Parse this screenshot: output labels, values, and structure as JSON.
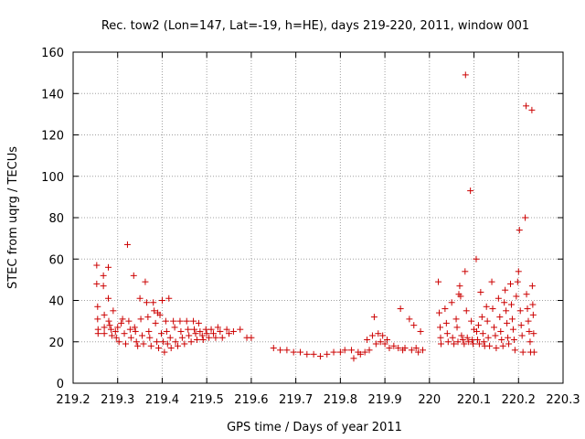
{
  "chart_data": {
    "type": "scatter",
    "title": "Rec. tow2 (Lon=147, Lat=-19, h=HE), days 219-220, 2011, window 001",
    "xlabel": "GPS time / Days of year 2011",
    "ylabel": "STEC from uqrg / TECUs",
    "xlim": [
      219.2,
      220.3
    ],
    "ylim": [
      0,
      160
    ],
    "x_ticks": [
      "219.2",
      "219.3",
      "219.4",
      "219.5",
      "219.6",
      "219.7",
      "219.8",
      "219.9",
      "220",
      "220.1",
      "220.2",
      "220.3"
    ],
    "y_ticks": [
      "0",
      "20",
      "40",
      "60",
      "80",
      "100",
      "120",
      "140",
      "160"
    ],
    "grid": true,
    "marker": "+",
    "marker_color": "#cc0000",
    "points": [
      [
        219.253,
        57
      ],
      [
        219.253,
        48
      ],
      [
        219.255,
        37
      ],
      [
        219.255,
        31
      ],
      [
        219.256,
        26
      ],
      [
        219.256,
        24
      ],
      [
        219.268,
        47
      ],
      [
        219.268,
        52
      ],
      [
        219.27,
        33
      ],
      [
        219.27,
        27
      ],
      [
        219.27,
        24
      ],
      [
        219.279,
        56
      ],
      [
        219.279,
        41
      ],
      [
        219.28,
        30
      ],
      [
        219.282,
        28
      ],
      [
        219.285,
        26
      ],
      [
        219.287,
        23
      ],
      [
        219.29,
        35
      ],
      [
        219.295,
        25
      ],
      [
        219.297,
        22
      ],
      [
        219.3,
        27
      ],
      [
        219.303,
        20
      ],
      [
        219.308,
        29
      ],
      [
        219.311,
        31
      ],
      [
        219.315,
        24
      ],
      [
        219.318,
        19
      ],
      [
        219.322,
        67
      ],
      [
        219.325,
        30
      ],
      [
        219.328,
        26
      ],
      [
        219.33,
        22
      ],
      [
        219.336,
        52
      ],
      [
        219.338,
        27
      ],
      [
        219.34,
        25
      ],
      [
        219.342,
        20
      ],
      [
        219.345,
        18
      ],
      [
        219.35,
        41
      ],
      [
        219.352,
        31
      ],
      [
        219.355,
        23
      ],
      [
        219.358,
        19
      ],
      [
        219.362,
        49
      ],
      [
        219.365,
        39
      ],
      [
        219.368,
        32
      ],
      [
        219.37,
        25
      ],
      [
        219.372,
        22
      ],
      [
        219.375,
        18
      ],
      [
        219.38,
        39
      ],
      [
        219.382,
        35
      ],
      [
        219.385,
        29
      ],
      [
        219.388,
        20
      ],
      [
        219.39,
        34
      ],
      [
        219.392,
        17
      ],
      [
        219.395,
        33
      ],
      [
        219.398,
        24
      ],
      [
        219.4,
        40
      ],
      [
        219.402,
        20
      ],
      [
        219.405,
        15
      ],
      [
        219.408,
        30
      ],
      [
        219.41,
        25
      ],
      [
        219.412,
        19
      ],
      [
        219.415,
        41
      ],
      [
        219.418,
        22
      ],
      [
        219.42,
        17
      ],
      [
        219.425,
        30
      ],
      [
        219.428,
        27
      ],
      [
        219.43,
        20
      ],
      [
        219.435,
        18
      ],
      [
        219.44,
        30
      ],
      [
        219.442,
        25
      ],
      [
        219.445,
        22
      ],
      [
        219.45,
        19
      ],
      [
        219.455,
        30
      ],
      [
        219.458,
        26
      ],
      [
        219.46,
        23
      ],
      [
        219.465,
        20
      ],
      [
        219.47,
        30
      ],
      [
        219.472,
        26
      ],
      [
        219.475,
        24
      ],
      [
        219.478,
        21
      ],
      [
        219.482,
        29
      ],
      [
        219.485,
        25
      ],
      [
        219.49,
        23
      ],
      [
        219.492,
        21
      ],
      [
        219.498,
        26
      ],
      [
        219.5,
        24
      ],
      [
        219.505,
        22
      ],
      [
        219.51,
        26
      ],
      [
        219.515,
        24
      ],
      [
        219.52,
        22
      ],
      [
        219.525,
        27
      ],
      [
        219.53,
        25
      ],
      [
        219.535,
        22
      ],
      [
        219.545,
        26
      ],
      [
        219.55,
        24
      ],
      [
        219.56,
        25
      ],
      [
        219.575,
        26
      ],
      [
        219.59,
        22
      ],
      [
        219.6,
        22
      ],
      [
        219.65,
        17
      ],
      [
        219.665,
        16
      ],
      [
        219.68,
        16
      ],
      [
        219.695,
        15
      ],
      [
        219.71,
        15
      ],
      [
        219.725,
        14
      ],
      [
        219.74,
        14
      ],
      [
        219.755,
        13
      ],
      [
        219.77,
        14
      ],
      [
        219.785,
        15
      ],
      [
        219.8,
        15
      ],
      [
        219.81,
        16
      ],
      [
        219.825,
        16
      ],
      [
        219.83,
        12
      ],
      [
        219.84,
        15
      ],
      [
        219.845,
        14
      ],
      [
        219.855,
        15
      ],
      [
        219.86,
        21
      ],
      [
        219.865,
        16
      ],
      [
        219.872,
        23
      ],
      [
        219.876,
        32
      ],
      [
        219.88,
        19
      ],
      [
        219.885,
        24
      ],
      [
        219.89,
        20
      ],
      [
        219.895,
        23
      ],
      [
        219.9,
        19
      ],
      [
        219.905,
        21
      ],
      [
        219.91,
        17
      ],
      [
        219.92,
        18
      ],
      [
        219.93,
        17
      ],
      [
        219.935,
        36
      ],
      [
        219.94,
        16
      ],
      [
        219.945,
        17
      ],
      [
        219.955,
        31
      ],
      [
        219.96,
        16
      ],
      [
        219.965,
        28
      ],
      [
        219.97,
        17
      ],
      [
        219.975,
        15
      ],
      [
        219.98,
        25
      ],
      [
        219.985,
        16
      ],
      [
        220.02,
        49
      ],
      [
        220.022,
        34
      ],
      [
        220.024,
        27
      ],
      [
        220.025,
        22
      ],
      [
        220.026,
        19
      ],
      [
        220.035,
        36
      ],
      [
        220.038,
        29
      ],
      [
        220.04,
        24
      ],
      [
        220.042,
        20
      ],
      [
        220.05,
        39
      ],
      [
        220.052,
        22
      ],
      [
        220.055,
        19
      ],
      [
        220.06,
        31
      ],
      [
        220.062,
        27
      ],
      [
        220.064,
        20
      ],
      [
        220.066,
        43
      ],
      [
        220.068,
        47
      ],
      [
        220.07,
        42
      ],
      [
        220.072,
        23
      ],
      [
        220.075,
        21
      ],
      [
        220.078,
        19
      ],
      [
        220.08,
        54
      ],
      [
        220.081,
        149
      ],
      [
        220.083,
        35
      ],
      [
        220.085,
        22
      ],
      [
        220.088,
        20
      ],
      [
        220.092,
        93
      ],
      [
        220.094,
        30
      ],
      [
        220.096,
        21
      ],
      [
        220.098,
        19
      ],
      [
        220.1,
        26
      ],
      [
        220.105,
        60
      ],
      [
        220.106,
        25
      ],
      [
        220.108,
        21
      ],
      [
        220.11,
        28
      ],
      [
        220.112,
        19
      ],
      [
        220.115,
        44
      ],
      [
        220.118,
        32
      ],
      [
        220.12,
        24
      ],
      [
        220.122,
        20
      ],
      [
        220.124,
        18
      ],
      [
        220.128,
        37
      ],
      [
        220.13,
        30
      ],
      [
        220.132,
        22
      ],
      [
        220.135,
        18
      ],
      [
        220.14,
        49
      ],
      [
        220.142,
        36
      ],
      [
        220.145,
        27
      ],
      [
        220.148,
        23
      ],
      [
        220.15,
        17
      ],
      [
        220.155,
        41
      ],
      [
        220.158,
        32
      ],
      [
        220.16,
        25
      ],
      [
        220.162,
        21
      ],
      [
        220.165,
        18
      ],
      [
        220.168,
        39
      ],
      [
        220.17,
        45
      ],
      [
        220.172,
        35
      ],
      [
        220.174,
        29
      ],
      [
        220.176,
        22
      ],
      [
        220.178,
        19
      ],
      [
        220.182,
        48
      ],
      [
        220.184,
        38
      ],
      [
        220.186,
        31
      ],
      [
        220.188,
        26
      ],
      [
        220.19,
        21
      ],
      [
        220.192,
        16
      ],
      [
        220.195,
        42
      ],
      [
        220.198,
        49
      ],
      [
        220.2,
        54
      ],
      [
        220.202,
        74
      ],
      [
        220.204,
        35
      ],
      [
        220.206,
        28
      ],
      [
        220.208,
        23
      ],
      [
        220.21,
        15
      ],
      [
        220.215,
        80
      ],
      [
        220.217,
        134
      ],
      [
        220.218,
        43
      ],
      [
        220.22,
        36
      ],
      [
        220.222,
        30
      ],
      [
        220.224,
        25
      ],
      [
        220.226,
        20
      ],
      [
        220.227,
        15
      ],
      [
        220.23,
        132
      ],
      [
        220.231,
        47
      ],
      [
        220.232,
        38
      ],
      [
        220.233,
        33
      ],
      [
        220.234,
        24
      ],
      [
        220.235,
        15
      ]
    ]
  }
}
